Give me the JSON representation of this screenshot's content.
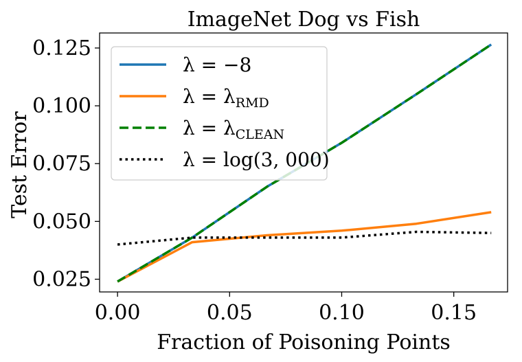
{
  "chart_data": {
    "type": "line",
    "title": "ImageNet Dog vs Fish",
    "xlabel": "Fraction of Poisoning Points",
    "ylabel": "Test Error",
    "xlim": [
      -0.008,
      0.174
    ],
    "ylim": [
      0.0195,
      0.1315
    ],
    "xticks": [
      0.0,
      0.05,
      0.1,
      0.15
    ],
    "xtick_labels": [
      "0.00",
      "0.05",
      "0.10",
      "0.15"
    ],
    "yticks": [
      0.025,
      0.05,
      0.075,
      0.1,
      0.125
    ],
    "ytick_labels": [
      "0.025",
      "0.050",
      "0.075",
      "0.100",
      "0.125"
    ],
    "grid": false,
    "legend_position": "top-left",
    "series": [
      {
        "name": "λ = −8",
        "legend_main": "λ = −8",
        "legend_sub": "",
        "color": "#1f77b4",
        "style": "solid",
        "x": [
          0.0,
          0.0333,
          0.0667,
          0.1,
          0.1333,
          0.1667
        ],
        "y": [
          0.024,
          0.043,
          0.065,
          0.084,
          0.105,
          0.1265
        ]
      },
      {
        "name": "λ = λRMD",
        "legend_main": "λ = λ",
        "legend_sub": "RMD",
        "color": "#ff7f0e",
        "style": "solid",
        "x": [
          0.0,
          0.0333,
          0.0667,
          0.1,
          0.1333,
          0.1667
        ],
        "y": [
          0.024,
          0.041,
          0.044,
          0.046,
          0.049,
          0.054
        ]
      },
      {
        "name": "λ = λCLEAN",
        "legend_main": "λ = λ",
        "legend_sub": "CLEAN",
        "color": "#008000",
        "style": "dashed",
        "x": [
          0.0,
          0.0333,
          0.0667,
          0.1,
          0.1333,
          0.1667
        ],
        "y": [
          0.024,
          0.043,
          0.065,
          0.084,
          0.105,
          0.1265
        ]
      },
      {
        "name": "λ = log(3, 000)",
        "legend_main": "λ = log(3, 000)",
        "legend_sub": "",
        "color": "#000000",
        "style": "dotted",
        "x": [
          0.0,
          0.0333,
          0.0667,
          0.1,
          0.1333,
          0.1667
        ],
        "y": [
          0.04,
          0.043,
          0.043,
          0.043,
          0.0455,
          0.045
        ]
      }
    ]
  }
}
